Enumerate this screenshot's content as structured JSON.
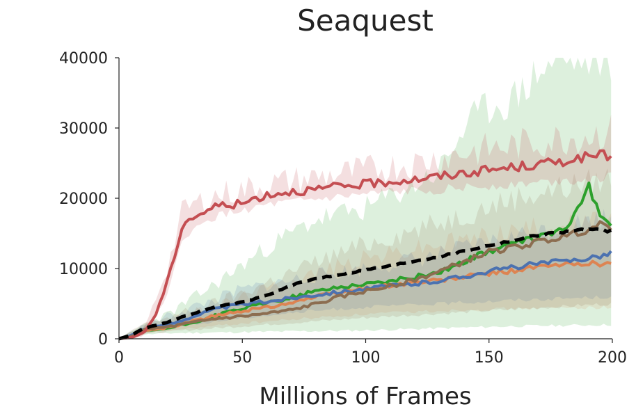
{
  "chart_data": {
    "type": "line",
    "title": "Seaquest",
    "xlabel": "Millions of Frames",
    "ylabel": "",
    "xlim": [
      0,
      200
    ],
    "ylim": [
      0,
      40000
    ],
    "xticks": [
      "0",
      "50",
      "100",
      "150",
      "200"
    ],
    "yticks": [
      "0",
      "10000",
      "20000",
      "30000",
      "40000"
    ],
    "grid": false,
    "legend": "none",
    "series": [
      {
        "color": "#2ca02c",
        "band_color": "#2ca02c",
        "band_opacity": 0.16,
        "style": "solid",
        "points": [
          [
            0,
            0
          ],
          [
            5,
            400
          ],
          [
            10,
            1100
          ],
          [
            20,
            1500
          ],
          [
            30,
            2300
          ],
          [
            40,
            3400
          ],
          [
            50,
            4300
          ],
          [
            60,
            5100
          ],
          [
            70,
            5900
          ],
          [
            80,
            6800
          ],
          [
            90,
            7400
          ],
          [
            100,
            7800
          ],
          [
            110,
            8200
          ],
          [
            120,
            8800
          ],
          [
            130,
            9500
          ],
          [
            140,
            11000
          ],
          [
            150,
            12500
          ],
          [
            160,
            13500
          ],
          [
            170,
            14500
          ],
          [
            180,
            15500
          ],
          [
            185,
            17500
          ],
          [
            190,
            22000
          ],
          [
            195,
            18000
          ],
          [
            200,
            16000
          ]
        ],
        "lower": [
          [
            0,
            0
          ],
          [
            10,
            600
          ],
          [
            20,
            800
          ],
          [
            40,
            900
          ],
          [
            60,
            1000
          ],
          [
            80,
            1100
          ],
          [
            100,
            1200
          ],
          [
            120,
            1400
          ],
          [
            140,
            1600
          ],
          [
            160,
            1800
          ],
          [
            180,
            1900
          ],
          [
            200,
            2000
          ]
        ],
        "upper": [
          [
            0,
            0
          ],
          [
            10,
            2000
          ],
          [
            20,
            3500
          ],
          [
            40,
            8000
          ],
          [
            60,
            13000
          ],
          [
            80,
            17000
          ],
          [
            100,
            18500
          ],
          [
            120,
            22000
          ],
          [
            130,
            24000
          ],
          [
            140,
            30000
          ],
          [
            150,
            33000
          ],
          [
            160,
            34000
          ],
          [
            170,
            38000
          ],
          [
            180,
            40000
          ],
          [
            190,
            40000
          ],
          [
            200,
            40000
          ]
        ]
      },
      {
        "color": "#dd8452",
        "band_color": "#dd8452",
        "band_opacity": 0.14,
        "style": "solid",
        "points": [
          [
            0,
            0
          ],
          [
            5,
            400
          ],
          [
            10,
            1200
          ],
          [
            20,
            1600
          ],
          [
            30,
            2500
          ],
          [
            40,
            3300
          ],
          [
            50,
            4000
          ],
          [
            60,
            4500
          ],
          [
            70,
            5200
          ],
          [
            80,
            6000
          ],
          [
            90,
            6600
          ],
          [
            100,
            7200
          ],
          [
            110,
            7600
          ],
          [
            120,
            8000
          ],
          [
            130,
            8300
          ],
          [
            140,
            8800
          ],
          [
            150,
            9300
          ],
          [
            160,
            9700
          ],
          [
            170,
            10200
          ],
          [
            180,
            10500
          ],
          [
            190,
            10800
          ],
          [
            200,
            10600
          ]
        ],
        "lower": [
          [
            0,
            0
          ],
          [
            10,
            800
          ],
          [
            30,
            1500
          ],
          [
            50,
            2200
          ],
          [
            80,
            3000
          ],
          [
            100,
            3500
          ],
          [
            130,
            4000
          ],
          [
            160,
            4300
          ],
          [
            200,
            4500
          ]
        ],
        "upper": [
          [
            0,
            0
          ],
          [
            10,
            1600
          ],
          [
            30,
            3500
          ],
          [
            50,
            6000
          ],
          [
            80,
            9500
          ],
          [
            100,
            11500
          ],
          [
            130,
            13500
          ],
          [
            160,
            15500
          ],
          [
            200,
            17000
          ]
        ]
      },
      {
        "color": "#4c72b0",
        "band_color": "#4c72b0",
        "band_opacity": 0.16,
        "style": "solid",
        "points": [
          [
            0,
            0
          ],
          [
            5,
            500
          ],
          [
            10,
            1400
          ],
          [
            20,
            2000
          ],
          [
            30,
            3200
          ],
          [
            40,
            4300
          ],
          [
            50,
            4900
          ],
          [
            60,
            5300
          ],
          [
            70,
            5800
          ],
          [
            80,
            6300
          ],
          [
            90,
            6700
          ],
          [
            100,
            7100
          ],
          [
            110,
            7500
          ],
          [
            120,
            7800
          ],
          [
            130,
            8300
          ],
          [
            140,
            8900
          ],
          [
            150,
            9600
          ],
          [
            160,
            10200
          ],
          [
            170,
            10700
          ],
          [
            180,
            11000
          ],
          [
            190,
            11500
          ],
          [
            200,
            12200
          ]
        ],
        "lower": [
          [
            0,
            0
          ],
          [
            10,
            900
          ],
          [
            30,
            2000
          ],
          [
            50,
            3000
          ],
          [
            80,
            4000
          ],
          [
            100,
            4500
          ],
          [
            130,
            5000
          ],
          [
            160,
            5500
          ],
          [
            200,
            6000
          ]
        ],
        "upper": [
          [
            0,
            0
          ],
          [
            10,
            2000
          ],
          [
            30,
            4500
          ],
          [
            50,
            7000
          ],
          [
            80,
            9000
          ],
          [
            100,
            10000
          ],
          [
            130,
            12000
          ],
          [
            160,
            14500
          ],
          [
            200,
            17500
          ]
        ]
      },
      {
        "color": "#8c6d50",
        "band_color": "#8c6d50",
        "band_opacity": 0.16,
        "style": "solid",
        "points": [
          [
            0,
            0
          ],
          [
            5,
            300
          ],
          [
            10,
            1300
          ],
          [
            20,
            1700
          ],
          [
            30,
            2300
          ],
          [
            40,
            2900
          ],
          [
            50,
            3200
          ],
          [
            60,
            3600
          ],
          [
            70,
            4100
          ],
          [
            80,
            5000
          ],
          [
            90,
            6000
          ],
          [
            100,
            6800
          ],
          [
            110,
            7500
          ],
          [
            120,
            8400
          ],
          [
            130,
            9600
          ],
          [
            140,
            11000
          ],
          [
            150,
            12400
          ],
          [
            160,
            13000
          ],
          [
            170,
            13800
          ],
          [
            180,
            14500
          ],
          [
            190,
            15500
          ],
          [
            195,
            16200
          ],
          [
            200,
            15800
          ]
        ],
        "lower": [
          [
            0,
            0
          ],
          [
            10,
            700
          ],
          [
            30,
            1300
          ],
          [
            50,
            1800
          ],
          [
            80,
            2500
          ],
          [
            100,
            3000
          ],
          [
            130,
            3600
          ],
          [
            160,
            4200
          ],
          [
            200,
            5000
          ]
        ],
        "upper": [
          [
            0,
            0
          ],
          [
            10,
            2200
          ],
          [
            30,
            4000
          ],
          [
            50,
            6500
          ],
          [
            80,
            11000
          ],
          [
            100,
            13500
          ],
          [
            130,
            16500
          ],
          [
            160,
            20000
          ],
          [
            180,
            21500
          ],
          [
            200,
            23000
          ]
        ]
      },
      {
        "color": "#c44e52",
        "band_color": "#c44e52",
        "band_opacity": 0.18,
        "style": "solid",
        "points": [
          [
            0,
            0
          ],
          [
            5,
            200
          ],
          [
            10,
            800
          ],
          [
            15,
            3500
          ],
          [
            20,
            8500
          ],
          [
            23,
            12500
          ],
          [
            26,
            16500
          ],
          [
            30,
            17300
          ],
          [
            35,
            18100
          ],
          [
            40,
            19000
          ],
          [
            50,
            19200
          ],
          [
            55,
            20000
          ],
          [
            60,
            20500
          ],
          [
            70,
            21000
          ],
          [
            80,
            21200
          ],
          [
            90,
            21700
          ],
          [
            100,
            22000
          ],
          [
            110,
            22400
          ],
          [
            120,
            22700
          ],
          [
            130,
            23100
          ],
          [
            140,
            23600
          ],
          [
            150,
            24000
          ],
          [
            160,
            24400
          ],
          [
            170,
            24800
          ],
          [
            180,
            25300
          ],
          [
            190,
            25900
          ],
          [
            200,
            26200
          ]
        ],
        "lower": [
          [
            0,
            0
          ],
          [
            10,
            400
          ],
          [
            20,
            6500
          ],
          [
            26,
            14500
          ],
          [
            40,
            17500
          ],
          [
            60,
            19000
          ],
          [
            80,
            19800
          ],
          [
            100,
            20500
          ],
          [
            120,
            21000
          ],
          [
            140,
            21500
          ],
          [
            160,
            22000
          ],
          [
            180,
            22500
          ],
          [
            200,
            23000
          ]
        ],
        "upper": [
          [
            0,
            0
          ],
          [
            10,
            1200
          ],
          [
            20,
            10500
          ],
          [
            26,
            18500
          ],
          [
            40,
            20500
          ],
          [
            60,
            22000
          ],
          [
            80,
            23000
          ],
          [
            100,
            24000
          ],
          [
            120,
            25000
          ],
          [
            140,
            26500
          ],
          [
            160,
            27500
          ],
          [
            180,
            28500
          ],
          [
            200,
            29500
          ]
        ]
      },
      {
        "color": "#000000",
        "band_color": "#000000",
        "band_opacity": 0,
        "style": "dashed",
        "points": [
          [
            0,
            0
          ],
          [
            5,
            500
          ],
          [
            10,
            1500
          ],
          [
            20,
            2400
          ],
          [
            30,
            3600
          ],
          [
            40,
            4600
          ],
          [
            50,
            5200
          ],
          [
            60,
            6200
          ],
          [
            70,
            7600
          ],
          [
            80,
            8600
          ],
          [
            90,
            9200
          ],
          [
            100,
            9800
          ],
          [
            110,
            10400
          ],
          [
            120,
            11100
          ],
          [
            130,
            11700
          ],
          [
            140,
            12500
          ],
          [
            150,
            13300
          ],
          [
            160,
            14000
          ],
          [
            170,
            14800
          ],
          [
            180,
            15200
          ],
          [
            190,
            15600
          ],
          [
            200,
            15300
          ]
        ]
      }
    ]
  }
}
